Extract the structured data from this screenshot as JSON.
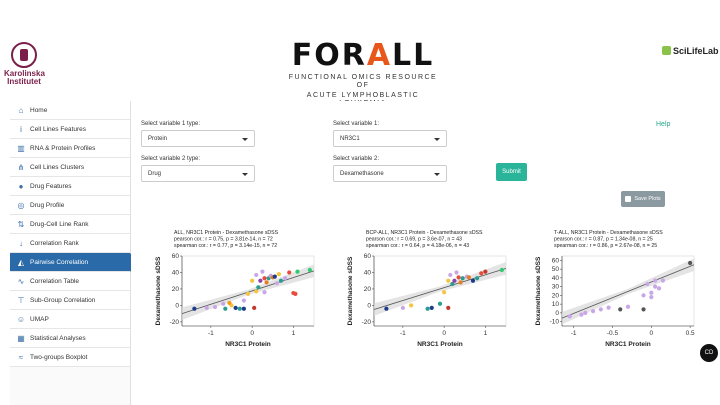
{
  "header": {
    "ki_logo_text": "Karolinska Institutet",
    "forall_title_pre": "FOR",
    "forall_title_ribbon": "A",
    "forall_title_post": "LL",
    "forall_subtitle_1": "FUNCTIONAL OMICS RESOURCE OF",
    "forall_subtitle_2": "ACUTE LYMPHOBLASTIC LEUKEMIA",
    "scilifelab": "SciLifeLab"
  },
  "sidebar": {
    "items": [
      {
        "label": "Home",
        "icon": "home-icon"
      },
      {
        "label": "Cell Lines Features",
        "icon": "info-icon"
      },
      {
        "label": "RNA & Protein Profiles",
        "icon": "barcode-icon"
      },
      {
        "label": "Cell Lines Clusters",
        "icon": "sitemap-icon"
      },
      {
        "label": "Drug Features",
        "icon": "pills-icon"
      },
      {
        "label": "Drug Profile",
        "icon": "bullseye-icon"
      },
      {
        "label": "Drug-Cell Line Rank",
        "icon": "sort-icon"
      },
      {
        "label": "Correlation Rank",
        "icon": "arrow-down-icon"
      },
      {
        "label": "Pairwise Correlation",
        "icon": "chart-area-icon"
      },
      {
        "label": "Correlation Table",
        "icon": "line-chart-icon"
      },
      {
        "label": "Sub-Group Correlation",
        "icon": "tree-icon"
      },
      {
        "label": "UMAP",
        "icon": "people-icon"
      },
      {
        "label": "Statistical Analyses",
        "icon": "table-icon"
      },
      {
        "label": "Two-groups Boxplot",
        "icon": "wave-icon"
      }
    ],
    "active_index": 8
  },
  "form": {
    "var1_type_label": "Select variable 1 type:",
    "var1_type_value": "Protein",
    "var1_label": "Select variable 1:",
    "var1_value": "NR3C1",
    "var2_type_label": "Select variable 2 type:",
    "var2_type_value": "Drug",
    "var2_label": "Select variable 2:",
    "var2_value": "Dexamethasone",
    "help": "Help",
    "submit": "Submit",
    "save_plots": "Save Plots"
  },
  "chat_button": "CD",
  "colors": {
    "sidebar_active": "#2a6aa8",
    "submit": "#2ab59a",
    "help": "#2aa58a",
    "save": "#8b9aa0"
  },
  "chart_data": [
    {
      "type": "scatter",
      "title_lines": [
        "ALL, NR3C1 Protein - Dexamethasone sDSS",
        "pearson cor.: r = 0.75, p = 3.81e-14, n = 72",
        "spearman cor.: r = 0.77, p = 3.14e-15, n = 72"
      ],
      "xlabel": "NR3C1 Protein",
      "ylabel": "Dexamethasone sDSS",
      "xlim": [
        -1.7,
        1.5
      ],
      "ylim": [
        -25,
        60
      ],
      "xticks": [
        -1,
        0,
        1
      ],
      "yticks": [
        -20,
        0,
        20,
        40,
        60
      ],
      "fit": [
        [
          -1.7,
          -10
        ],
        [
          1.5,
          42
        ]
      ],
      "points": [
        {
          "x": -1.4,
          "y": -4,
          "c": "#1a3c8a"
        },
        {
          "x": -1.1,
          "y": -3,
          "c": "#c9a6e8"
        },
        {
          "x": -0.9,
          "y": -2,
          "c": "#c9a6e8"
        },
        {
          "x": -0.7,
          "y": 2,
          "c": "#c9a6e8"
        },
        {
          "x": -0.65,
          "y": -4,
          "c": "#2a9d8f"
        },
        {
          "x": -0.5,
          "y": 0,
          "c": "#f4c542"
        },
        {
          "x": -0.4,
          "y": -3,
          "c": "#1a3c8a"
        },
        {
          "x": -0.3,
          "y": -4,
          "c": "#2a9d8f"
        },
        {
          "x": -0.2,
          "y": 6,
          "c": "#c9a6e8"
        },
        {
          "x": -0.2,
          "y": -4,
          "c": "#1a3c8a"
        },
        {
          "x": -0.1,
          "y": 14,
          "c": "#f4c542"
        },
        {
          "x": 0.0,
          "y": 30,
          "c": "#f4c542"
        },
        {
          "x": 0.05,
          "y": -3,
          "c": "#c0392b"
        },
        {
          "x": 0.1,
          "y": 17,
          "c": "#f4c542"
        },
        {
          "x": 0.1,
          "y": 37,
          "c": "#c9a6e8"
        },
        {
          "x": 0.15,
          "y": 22,
          "c": "#2a9d8f"
        },
        {
          "x": 0.2,
          "y": 30,
          "c": "#8e44ad"
        },
        {
          "x": 0.25,
          "y": 41,
          "c": "#c9a6e8"
        },
        {
          "x": 0.3,
          "y": 33,
          "c": "#e74c3c"
        },
        {
          "x": 0.35,
          "y": 28,
          "c": "#e67e22"
        },
        {
          "x": 0.4,
          "y": 33,
          "c": "#2a9d8f"
        },
        {
          "x": 0.45,
          "y": 36,
          "c": "#c9a6e8"
        },
        {
          "x": 0.5,
          "y": 34,
          "c": "#e67e22"
        },
        {
          "x": 0.55,
          "y": 35,
          "c": "#1a3c8a"
        },
        {
          "x": 0.6,
          "y": 27,
          "c": "#c9a6e8"
        },
        {
          "x": 0.7,
          "y": 30,
          "c": "#2a9d8f"
        },
        {
          "x": 0.8,
          "y": 33,
          "c": "#c9a6e8"
        },
        {
          "x": 0.9,
          "y": 40,
          "c": "#e74c3c"
        },
        {
          "x": 1.0,
          "y": 15,
          "c": "#e74c3c"
        },
        {
          "x": 1.05,
          "y": 14,
          "c": "#e74c3c"
        },
        {
          "x": 1.1,
          "y": 41,
          "c": "#2ecc71"
        },
        {
          "x": 1.4,
          "y": 43,
          "c": "#2ecc71"
        },
        {
          "x": 0.3,
          "y": 16,
          "c": "#c9a6e8"
        },
        {
          "x": -0.55,
          "y": 3,
          "c": "#f39c12"
        },
        {
          "x": 0.65,
          "y": 38,
          "c": "#f4c542"
        }
      ]
    },
    {
      "type": "scatter",
      "title_lines": [
        "BCP-ALL, NR3C1 Protein - Dexamethasone sDSS",
        "pearson cor.: r = 0.69, p = 3.6e-07, n = 43",
        "spearman cor.: r = 0.64, p = 4.18e-06, n = 43"
      ],
      "xlabel": "NR3C1 Protein",
      "ylabel": "Dexamethasone sDSS",
      "xlim": [
        -1.7,
        1.5
      ],
      "ylim": [
        -25,
        60
      ],
      "xticks": [
        -1,
        0,
        1
      ],
      "yticks": [
        -20,
        0,
        20,
        40,
        60
      ],
      "fit": [
        [
          -1.7,
          -5
        ],
        [
          1.5,
          45
        ]
      ],
      "points": [
        {
          "x": -1.4,
          "y": -4,
          "c": "#1a3c8a"
        },
        {
          "x": -1.0,
          "y": -3,
          "c": "#c9a6e8"
        },
        {
          "x": -0.8,
          "y": 0,
          "c": "#f4c542"
        },
        {
          "x": -0.4,
          "y": -4,
          "c": "#2a9d8f"
        },
        {
          "x": -0.3,
          "y": -3,
          "c": "#1a3c8a"
        },
        {
          "x": -0.1,
          "y": 2,
          "c": "#2a9d8f"
        },
        {
          "x": 0.0,
          "y": 16,
          "c": "#f4c542"
        },
        {
          "x": 0.1,
          "y": 30,
          "c": "#f4c542"
        },
        {
          "x": 0.15,
          "y": 37,
          "c": "#c9a6e8"
        },
        {
          "x": 0.2,
          "y": 26,
          "c": "#2a9d8f"
        },
        {
          "x": 0.25,
          "y": 30,
          "c": "#8e44ad"
        },
        {
          "x": 0.3,
          "y": 40,
          "c": "#c9a6e8"
        },
        {
          "x": 0.35,
          "y": 34,
          "c": "#e74c3c"
        },
        {
          "x": 0.4,
          "y": 28,
          "c": "#e67e22"
        },
        {
          "x": 0.45,
          "y": 33,
          "c": "#2a9d8f"
        },
        {
          "x": 0.55,
          "y": 35,
          "c": "#c9a6e8"
        },
        {
          "x": 0.6,
          "y": 34,
          "c": "#e67e22"
        },
        {
          "x": 0.7,
          "y": 30,
          "c": "#1a3c8a"
        },
        {
          "x": 0.8,
          "y": 33,
          "c": "#2a9d8f"
        },
        {
          "x": 0.9,
          "y": 39,
          "c": "#e74c3c"
        },
        {
          "x": 1.0,
          "y": 41,
          "c": "#c0392b"
        },
        {
          "x": 1.4,
          "y": 43,
          "c": "#2ecc71"
        },
        {
          "x": 0.1,
          "y": -3,
          "c": "#c0392b"
        }
      ]
    },
    {
      "type": "scatter",
      "title_lines": [
        "T-ALL, NR3C1 Protein - Dexamethasone sDSS",
        "pearson cor.: r = 0.87, p = 1.34e-08, n = 25",
        "spearman cor.: r = 0.86, p = 2.67e-08, n = 25"
      ],
      "xlabel": "NR3C1 Protein",
      "ylabel": "Dexamethasone sDSS",
      "xlim": [
        -1.15,
        0.55
      ],
      "ylim": [
        -15,
        65
      ],
      "xticks": [
        -1.0,
        -0.5,
        0.0,
        0.5
      ],
      "yticks": [
        -10,
        0,
        10,
        20,
        30,
        40,
        50,
        60
      ],
      "fit": [
        [
          -1.15,
          -6
        ],
        [
          0.55,
          55
        ]
      ],
      "points": [
        {
          "x": -1.05,
          "y": -4,
          "c": "#c9a6e8"
        },
        {
          "x": -0.9,
          "y": -2,
          "c": "#c9a6e8"
        },
        {
          "x": -0.75,
          "y": 2,
          "c": "#c9a6e8"
        },
        {
          "x": -0.65,
          "y": 4,
          "c": "#c9a6e8"
        },
        {
          "x": -0.4,
          "y": 4,
          "c": "#555555"
        },
        {
          "x": -0.3,
          "y": 7,
          "c": "#c9a6e8"
        },
        {
          "x": -0.1,
          "y": 4,
          "c": "#555555"
        },
        {
          "x": -0.1,
          "y": 20,
          "c": "#c9a6e8"
        },
        {
          "x": 0.0,
          "y": 23,
          "c": "#c9a6e8"
        },
        {
          "x": 0.05,
          "y": 30,
          "c": "#c9a6e8"
        },
        {
          "x": -0.05,
          "y": 33,
          "c": "#c9a6e8"
        },
        {
          "x": 0.05,
          "y": 37,
          "c": "#c9a6e8"
        },
        {
          "x": 0.15,
          "y": 37,
          "c": "#c9a6e8"
        },
        {
          "x": 0.1,
          "y": 28,
          "c": "#c9a6e8"
        },
        {
          "x": 0.0,
          "y": 18,
          "c": "#c9a6e8"
        },
        {
          "x": -0.85,
          "y": 0,
          "c": "#c9a6e8"
        },
        {
          "x": -0.55,
          "y": 6,
          "c": "#c9a6e8"
        },
        {
          "x": 0.5,
          "y": 57,
          "c": "#555555"
        }
      ]
    }
  ]
}
